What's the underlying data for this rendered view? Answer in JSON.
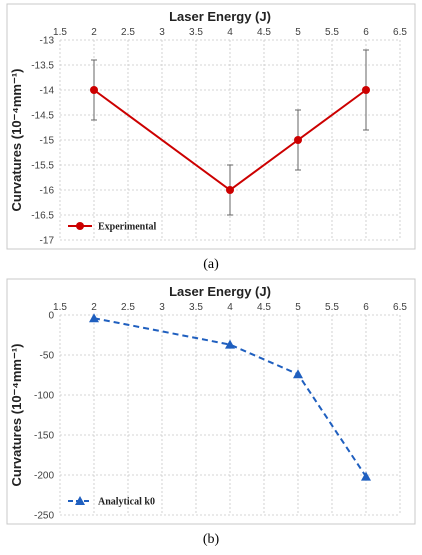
{
  "chart_data": [
    {
      "type": "line",
      "panel_label": "(a)",
      "title": "",
      "xlabel": "Laser Energy (J)",
      "ylabel": "Curvatures (10⁻⁴mm⁻¹)",
      "x_ticks": [
        "1.5",
        "2",
        "2.5",
        "3",
        "3.5",
        "4",
        "4.5",
        "5",
        "5.5",
        "6",
        "6.5"
      ],
      "y_ticks": [
        "-13",
        "-13.5",
        "-14",
        "-14.5",
        "-15",
        "-15.5",
        "-16",
        "-16.5",
        "-17"
      ],
      "xlim": [
        1.5,
        6.5
      ],
      "ylim": [
        -17,
        -13
      ],
      "x_axis_position": "top",
      "grid": true,
      "legend_position": "bottom-left",
      "series": [
        {
          "name": "Experimental",
          "color": "#cc0000",
          "marker": "circle",
          "line_style": "solid",
          "x": [
            2,
            4,
            5,
            6
          ],
          "y": [
            -14,
            -16,
            -15,
            -14
          ],
          "error": [
            0.6,
            0.5,
            0.6,
            0.8
          ]
        }
      ]
    },
    {
      "type": "line",
      "panel_label": "(b)",
      "title": "",
      "xlabel": "Laser Energy (J)",
      "ylabel": "Curvatures (10⁻⁴mm⁻¹)",
      "x_ticks": [
        "1.5",
        "2",
        "2.5",
        "3",
        "3.5",
        "4",
        "4.5",
        "5",
        "5.5",
        "6",
        "6.5"
      ],
      "y_ticks": [
        "0",
        "-50",
        "-100",
        "-150",
        "-200",
        "-250"
      ],
      "xlim": [
        1.5,
        6.5
      ],
      "ylim": [
        -250,
        0
      ],
      "x_axis_position": "top",
      "grid": true,
      "legend_position": "bottom-left",
      "series": [
        {
          "name": "Analytical k0",
          "color": "#1f5fbf",
          "marker": "triangle",
          "line_style": "dashed",
          "x": [
            2,
            4,
            5,
            6
          ],
          "y": [
            -4,
            -37,
            -74,
            -202
          ]
        }
      ]
    }
  ]
}
